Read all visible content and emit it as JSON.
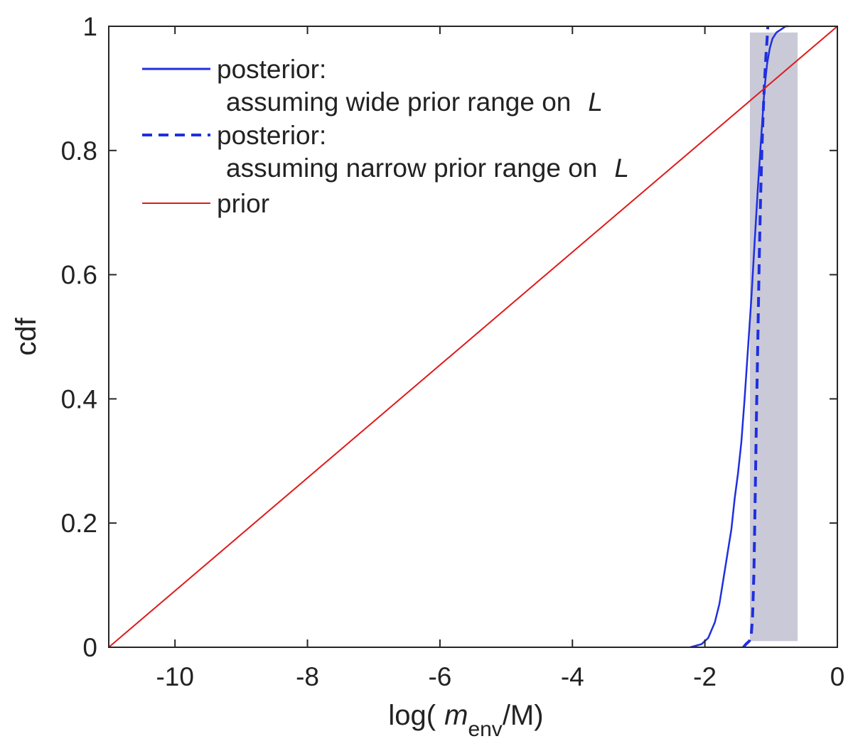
{
  "chart_data": {
    "type": "line",
    "title": "",
    "xlabel": {
      "prefix": "log(",
      "symbol": "m",
      "subscript": "env",
      "suffix": "/M)"
    },
    "ylabel": "cdf",
    "xlim": [
      -11,
      0
    ],
    "ylim": [
      0,
      1
    ],
    "xticks": [
      -10,
      -8,
      -6,
      -4,
      -2,
      0
    ],
    "xtick_labels": [
      "-10",
      "-8",
      "-6",
      "-4",
      "-2",
      "0"
    ],
    "yticks": [
      0,
      0.2,
      0.4,
      0.6,
      0.8,
      1
    ],
    "ytick_labels": [
      "0",
      "0.2",
      "0.4",
      "0.6",
      "0.8",
      "1"
    ],
    "grid": false,
    "legend_position": "top-left",
    "shaded_region": {
      "x_range": [
        -1.32,
        -0.6
      ],
      "y_range": [
        0.01,
        0.99
      ],
      "color": "#c9c9d8"
    },
    "series": [
      {
        "name": "posterior-wide",
        "legend_label": "posterior:",
        "legend_sublabel": "assuming wide prior range on",
        "legend_symbol": "L",
        "style": "solid",
        "color": "#1f2fe0",
        "x": [
          -2.22,
          -2.05,
          -1.95,
          -1.85,
          -1.78,
          -1.72,
          -1.66,
          -1.6,
          -1.55,
          -1.5,
          -1.45,
          -1.4,
          -1.35,
          -1.3,
          -1.25,
          -1.2,
          -1.15,
          -1.1,
          -1.06,
          -1.02,
          -0.98,
          -0.92,
          -0.85,
          -0.78,
          -0.74
        ],
        "y": [
          0.0,
          0.005,
          0.015,
          0.04,
          0.07,
          0.11,
          0.15,
          0.19,
          0.24,
          0.28,
          0.33,
          0.4,
          0.48,
          0.56,
          0.65,
          0.74,
          0.82,
          0.9,
          0.94,
          0.965,
          0.98,
          0.99,
          0.995,
          1.0,
          1.0
        ]
      },
      {
        "name": "posterior-narrow",
        "legend_label": "posterior:",
        "legend_sublabel": "assuming narrow prior range on",
        "legend_symbol": "L",
        "style": "dashed",
        "color": "#1f2fe0",
        "x": [
          -1.42,
          -1.38,
          -1.33,
          -1.3,
          -1.28,
          -1.26,
          -1.24,
          -1.22,
          -1.2,
          -1.18,
          -1.16,
          -1.14,
          -1.12,
          -1.1,
          -1.08,
          -1.06,
          -1.05
        ],
        "y": [
          0.0,
          0.005,
          0.01,
          0.02,
          0.05,
          0.12,
          0.25,
          0.38,
          0.5,
          0.62,
          0.72,
          0.8,
          0.86,
          0.91,
          0.95,
          0.98,
          1.0
        ]
      },
      {
        "name": "prior",
        "legend_label": "prior",
        "style": "solid",
        "color": "#e01a1a",
        "x": [
          -11,
          0
        ],
        "y": [
          0,
          1
        ]
      }
    ]
  }
}
